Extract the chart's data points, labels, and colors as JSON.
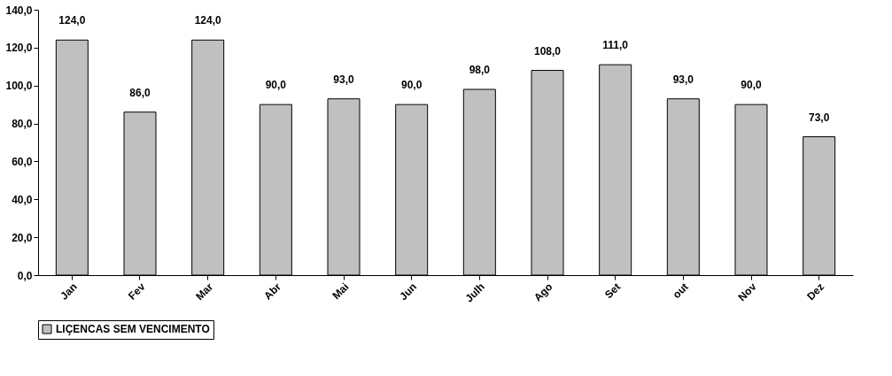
{
  "chart_data": {
    "type": "bar",
    "categories": [
      "Jan",
      "Fev",
      "Mar",
      "Abr",
      "Mai",
      "Jun",
      "Julh",
      "Ago",
      "Set",
      "out",
      "Nov",
      "Dez"
    ],
    "series": [
      {
        "name": "LIÇENCAS SEM VENCIMENTO",
        "color": "#c0c0c0",
        "values": [
          124,
          86,
          124,
          90,
          93,
          90,
          98,
          108,
          111,
          93,
          90,
          73
        ],
        "value_labels": [
          "124,0",
          "86,0",
          "124,0",
          "90,0",
          "93,0",
          "90,0",
          "98,0",
          "108,0",
          "111,0",
          "93,0",
          "90,0",
          "73,0"
        ]
      }
    ],
    "ylim": [
      0,
      140
    ],
    "yticks": [
      {
        "value": 0,
        "label": "0,0"
      },
      {
        "value": 20,
        "label": "20,0"
      },
      {
        "value": 40,
        "label": "40,0"
      },
      {
        "value": 60,
        "label": "60,0"
      },
      {
        "value": 80,
        "label": "80,0"
      },
      {
        "value": 100,
        "label": "100,0"
      },
      {
        "value": 120,
        "label": "120,0"
      },
      {
        "value": 140,
        "label": "140,0"
      }
    ],
    "grid": false,
    "legend": "bottom"
  }
}
